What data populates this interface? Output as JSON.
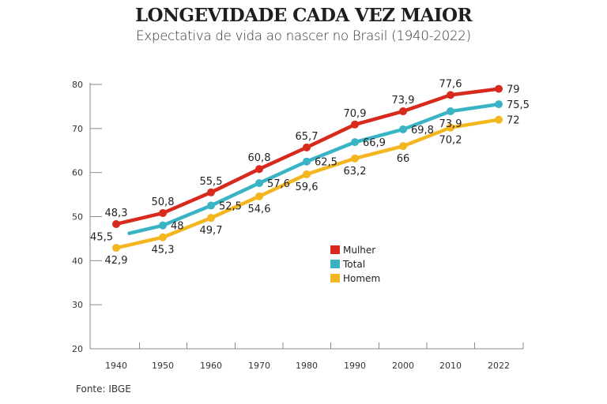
{
  "chart_data": {
    "type": "line",
    "title": "LONGEVIDADE CADA VEZ MAIOR",
    "subtitle": "Expectativa de vida ao nascer no Brasil (1940-2022)",
    "xlabel": "",
    "ylabel": "",
    "categories": [
      "1940",
      "1950",
      "1960",
      "1970",
      "1980",
      "1990",
      "2000",
      "2010",
      "2022"
    ],
    "ylim": [
      20,
      80
    ],
    "yticks": [
      20,
      30,
      40,
      50,
      60,
      70,
      80
    ],
    "grid": false,
    "legend_position": "center",
    "series": [
      {
        "name": "Mulher",
        "color": "#d7291c",
        "values": [
          48.3,
          50.8,
          55.5,
          60.8,
          65.7,
          70.9,
          73.9,
          77.6,
          79
        ],
        "labels": [
          "48,3",
          "50,8",
          "55,5",
          "60,8",
          "65,7",
          "70,9",
          "73,9",
          "77,6",
          "79"
        ]
      },
      {
        "name": "Total",
        "color": "#3ab4c4",
        "values": [
          45.5,
          48,
          52.5,
          57.6,
          62.5,
          66.9,
          69.8,
          73.9,
          75.5
        ],
        "labels": [
          "45,5",
          "48",
          "52,5",
          "57,6",
          "62,5",
          "66,9",
          "69,8",
          "73,9",
          "75,5"
        ]
      },
      {
        "name": "Homem",
        "color": "#f3b61f",
        "values": [
          42.9,
          45.3,
          49.7,
          54.6,
          59.6,
          63.2,
          66,
          70.2,
          72
        ],
        "labels": [
          "42,9",
          "45,3",
          "49,7",
          "54,6",
          "59,6",
          "63,2",
          "66",
          "70,2",
          "72"
        ]
      }
    ],
    "source": "Fonte: IBGE"
  }
}
